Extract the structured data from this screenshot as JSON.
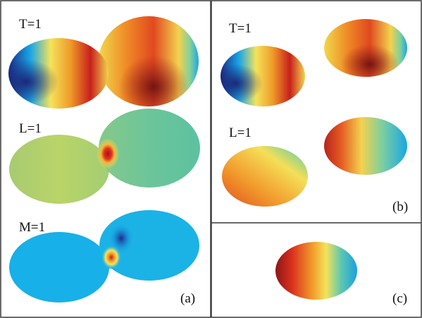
{
  "panel_a": {
    "caption": "(a)",
    "rows": [
      {
        "label": "T=1"
      },
      {
        "label": "L=1"
      },
      {
        "label": "M=1"
      }
    ]
  },
  "panel_b": {
    "caption": "(b)",
    "rows": [
      {
        "label": "T=1"
      },
      {
        "label": "L=1"
      }
    ]
  },
  "panel_c": {
    "caption": "(c)"
  },
  "colors": {
    "frame": "#3a3a3a",
    "deep_blue": "#2a2f8c",
    "light_blue": "#14aee8",
    "cyan": "#1fbfe0",
    "yellow": "#f3e25a",
    "orange": "#f09a28",
    "red": "#d9261f",
    "dark_red": "#7a1616",
    "olive_green": "#b2cf6a",
    "teal_green": "#5ec49a"
  }
}
